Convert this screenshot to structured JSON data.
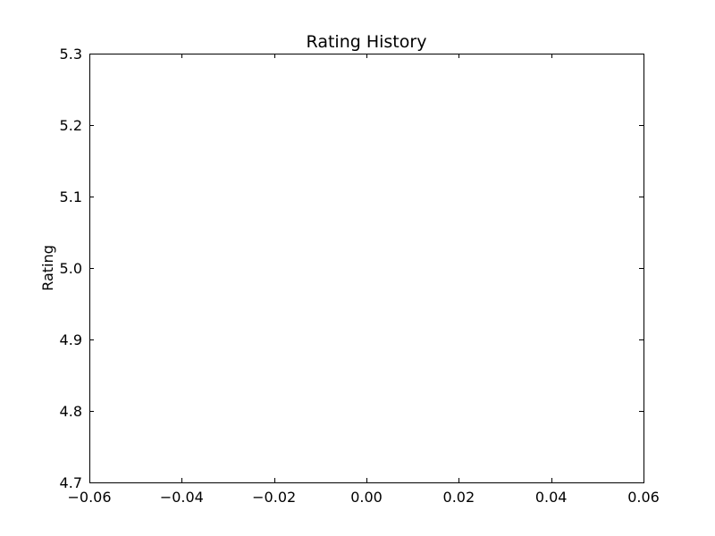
{
  "chart_data": {
    "type": "line",
    "title": "Rating History",
    "xlabel": "",
    "ylabel": "Rating",
    "xlim": [
      -0.06,
      0.06
    ],
    "ylim": [
      4.7,
      5.3
    ],
    "x_ticks": [
      -0.06,
      -0.04,
      -0.02,
      0.0,
      0.02,
      0.04,
      0.06
    ],
    "x_tick_labels": [
      "−0.06",
      "−0.04",
      "−0.02",
      "0.00",
      "0.02",
      "0.04",
      "0.06"
    ],
    "y_ticks": [
      4.7,
      4.8,
      4.9,
      5.0,
      5.1,
      5.2,
      5.3
    ],
    "y_tick_labels": [
      "4.7",
      "4.8",
      "4.9",
      "5.0",
      "5.1",
      "5.2",
      "5.3"
    ],
    "grid": false,
    "series": [
      {
        "x": [],
        "y": []
      }
    ],
    "colors": {
      "axes": "#000000",
      "background": "#ffffff"
    }
  }
}
